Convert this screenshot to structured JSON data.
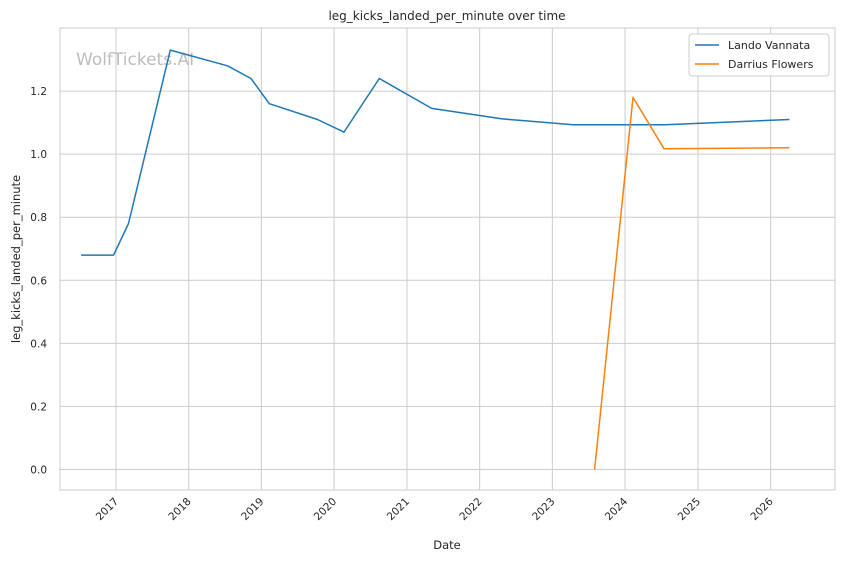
{
  "chart_data": {
    "type": "line",
    "title": "leg_kicks_landed_per_minute over time",
    "xlabel": "Date",
    "ylabel": "leg_kicks_landed_per_minute",
    "watermark": "WolfTickets.AI",
    "x_range": [
      "2016-03-26",
      "2026-11-20"
    ],
    "ylim": [
      -0.065,
      1.4
    ],
    "x_ticks": [
      "2017-01-01",
      "2018-01-01",
      "2019-01-01",
      "2020-01-01",
      "2021-01-01",
      "2022-01-01",
      "2023-01-01",
      "2024-01-01",
      "2025-01-01",
      "2026-01-01"
    ],
    "x_tick_labels": [
      "2017",
      "2018",
      "2019",
      "2020",
      "2021",
      "2022",
      "2023",
      "2024",
      "2025",
      "2026"
    ],
    "y_ticks": [
      0.0,
      0.2,
      0.4,
      0.6,
      0.8,
      1.0,
      1.2
    ],
    "y_tick_labels": [
      "0.0",
      "0.2",
      "0.4",
      "0.6",
      "0.8",
      "1.0",
      "1.2"
    ],
    "grid": true,
    "legend": "top-right",
    "series": [
      {
        "name": "Lando Vannata",
        "color": "#1f77b4",
        "points": [
          [
            "2016-07-10",
            0.68
          ],
          [
            "2016-12-20",
            0.68
          ],
          [
            "2017-03-05",
            0.78
          ],
          [
            "2017-10-01",
            1.33
          ],
          [
            "2018-07-15",
            1.28
          ],
          [
            "2018-11-10",
            1.24
          ],
          [
            "2019-02-10",
            1.16
          ],
          [
            "2019-10-10",
            1.11
          ],
          [
            "2020-02-20",
            1.07
          ],
          [
            "2020-08-15",
            1.24
          ],
          [
            "2021-05-05",
            1.145
          ],
          [
            "2022-04-20",
            1.112
          ],
          [
            "2023-04-15",
            1.093
          ],
          [
            "2024-07-20",
            1.093
          ],
          [
            "2026-04-05",
            1.11
          ]
        ]
      },
      {
        "name": "Darrius Flowers",
        "color": "#ff7f0e",
        "points": [
          [
            "2023-08-01",
            0.0
          ],
          [
            "2024-02-10",
            1.18
          ],
          [
            "2024-07-15",
            1.017
          ],
          [
            "2026-04-05",
            1.02
          ]
        ]
      }
    ]
  }
}
